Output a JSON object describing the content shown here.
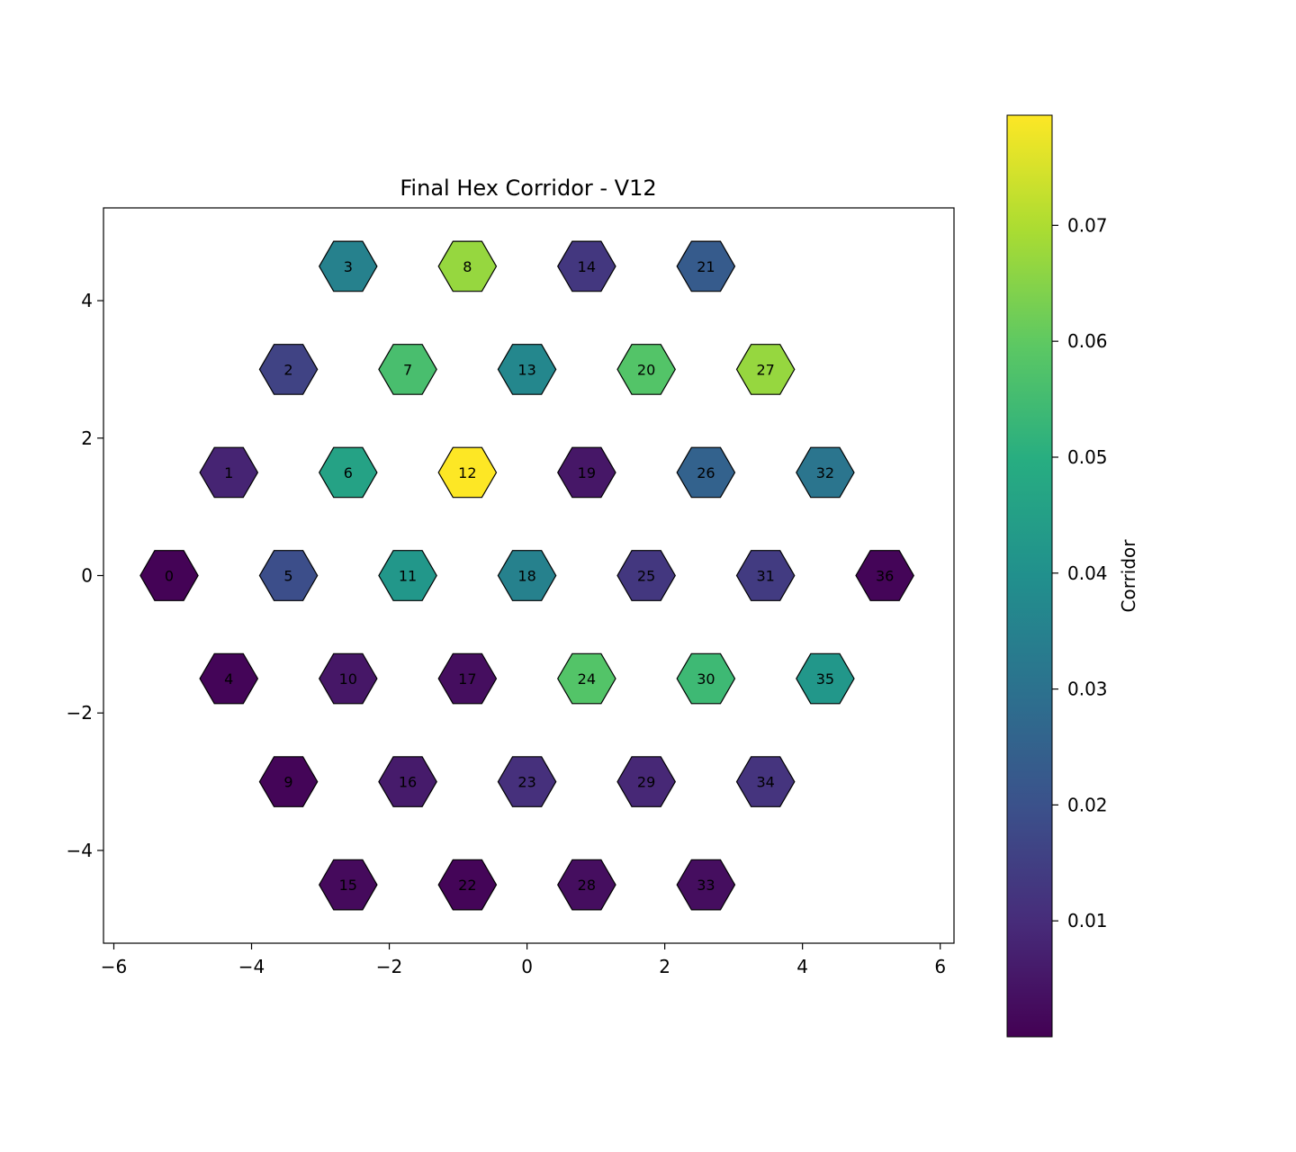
{
  "chart_data": {
    "type": "heatmap",
    "title": "Final Hex Corridor - V12",
    "xlabel": "",
    "ylabel": "",
    "xlim": [
      -6.15,
      6.2
    ],
    "ylim": [
      -5.35,
      5.35
    ],
    "x_ticks": [
      -6,
      -4,
      -2,
      0,
      2,
      4,
      6
    ],
    "x_tick_labels": [
      "−6",
      "−4",
      "−2",
      "0",
      "2",
      "4",
      "6"
    ],
    "y_ticks": [
      -4,
      -2,
      0,
      2,
      4
    ],
    "y_tick_labels": [
      "−4",
      "−2",
      "0",
      "2",
      "4"
    ],
    "grid": false,
    "colormap": "viridis",
    "colorbar": {
      "label": "Corridor",
      "range": [
        0.0,
        0.0795
      ],
      "ticks": [
        0.01,
        0.02,
        0.03,
        0.04,
        0.05,
        0.06,
        0.07
      ],
      "tick_labels": [
        "0.01",
        "0.02",
        "0.03",
        "0.04",
        "0.05",
        "0.06",
        "0.07"
      ]
    },
    "cells": [
      {
        "id": "0",
        "x": -5.196,
        "y": 0.0,
        "value": 0.0005
      },
      {
        "id": "1",
        "x": -4.33,
        "y": 1.5,
        "value": 0.008
      },
      {
        "id": "2",
        "x": -3.464,
        "y": 3.0,
        "value": 0.016
      },
      {
        "id": "3",
        "x": -2.598,
        "y": 4.5,
        "value": 0.035
      },
      {
        "id": "4",
        "x": -4.33,
        "y": -1.5,
        "value": 0.001
      },
      {
        "id": "5",
        "x": -3.464,
        "y": 0.0,
        "value": 0.019
      },
      {
        "id": "6",
        "x": -2.598,
        "y": 1.5,
        "value": 0.046
      },
      {
        "id": "7",
        "x": -1.732,
        "y": 3.0,
        "value": 0.056
      },
      {
        "id": "8",
        "x": -0.866,
        "y": 4.5,
        "value": 0.067
      },
      {
        "id": "9",
        "x": -3.464,
        "y": -3.0,
        "value": 0.001
      },
      {
        "id": "10",
        "x": -2.598,
        "y": -1.5,
        "value": 0.005
      },
      {
        "id": "11",
        "x": -1.732,
        "y": 0.0,
        "value": 0.042
      },
      {
        "id": "12",
        "x": -0.866,
        "y": 1.5,
        "value": 0.0795
      },
      {
        "id": "13",
        "x": 0.0,
        "y": 3.0,
        "value": 0.037
      },
      {
        "id": "14",
        "x": 0.866,
        "y": 4.5,
        "value": 0.013
      },
      {
        "id": "15",
        "x": -2.598,
        "y": -4.5,
        "value": 0.002
      },
      {
        "id": "16",
        "x": -1.732,
        "y": -3.0,
        "value": 0.006
      },
      {
        "id": "17",
        "x": -0.866,
        "y": -1.5,
        "value": 0.003
      },
      {
        "id": "18",
        "x": 0.0,
        "y": 0.0,
        "value": 0.035
      },
      {
        "id": "19",
        "x": 0.866,
        "y": 1.5,
        "value": 0.005
      },
      {
        "id": "20",
        "x": 1.732,
        "y": 3.0,
        "value": 0.058
      },
      {
        "id": "21",
        "x": 2.598,
        "y": 4.5,
        "value": 0.023
      },
      {
        "id": "22",
        "x": -0.866,
        "y": -4.5,
        "value": 0.001
      },
      {
        "id": "23",
        "x": 0.0,
        "y": -3.0,
        "value": 0.011
      },
      {
        "id": "24",
        "x": 0.866,
        "y": -1.5,
        "value": 0.058
      },
      {
        "id": "25",
        "x": 1.732,
        "y": 0.0,
        "value": 0.013
      },
      {
        "id": "26",
        "x": 2.598,
        "y": 1.5,
        "value": 0.025
      },
      {
        "id": "27",
        "x": 3.464,
        "y": 3.0,
        "value": 0.067
      },
      {
        "id": "28",
        "x": 0.866,
        "y": -4.5,
        "value": 0.003
      },
      {
        "id": "29",
        "x": 1.732,
        "y": -3.0,
        "value": 0.009
      },
      {
        "id": "30",
        "x": 2.598,
        "y": -1.5,
        "value": 0.054
      },
      {
        "id": "31",
        "x": 3.464,
        "y": 0.0,
        "value": 0.014
      },
      {
        "id": "32",
        "x": 4.33,
        "y": 1.5,
        "value": 0.031
      },
      {
        "id": "33",
        "x": 2.598,
        "y": -4.5,
        "value": 0.003
      },
      {
        "id": "34",
        "x": 3.464,
        "y": -3.0,
        "value": 0.012
      },
      {
        "id": "35",
        "x": 4.33,
        "y": -1.5,
        "value": 0.042
      },
      {
        "id": "36",
        "x": 5.196,
        "y": 0.0,
        "value": 0.001
      }
    ]
  }
}
